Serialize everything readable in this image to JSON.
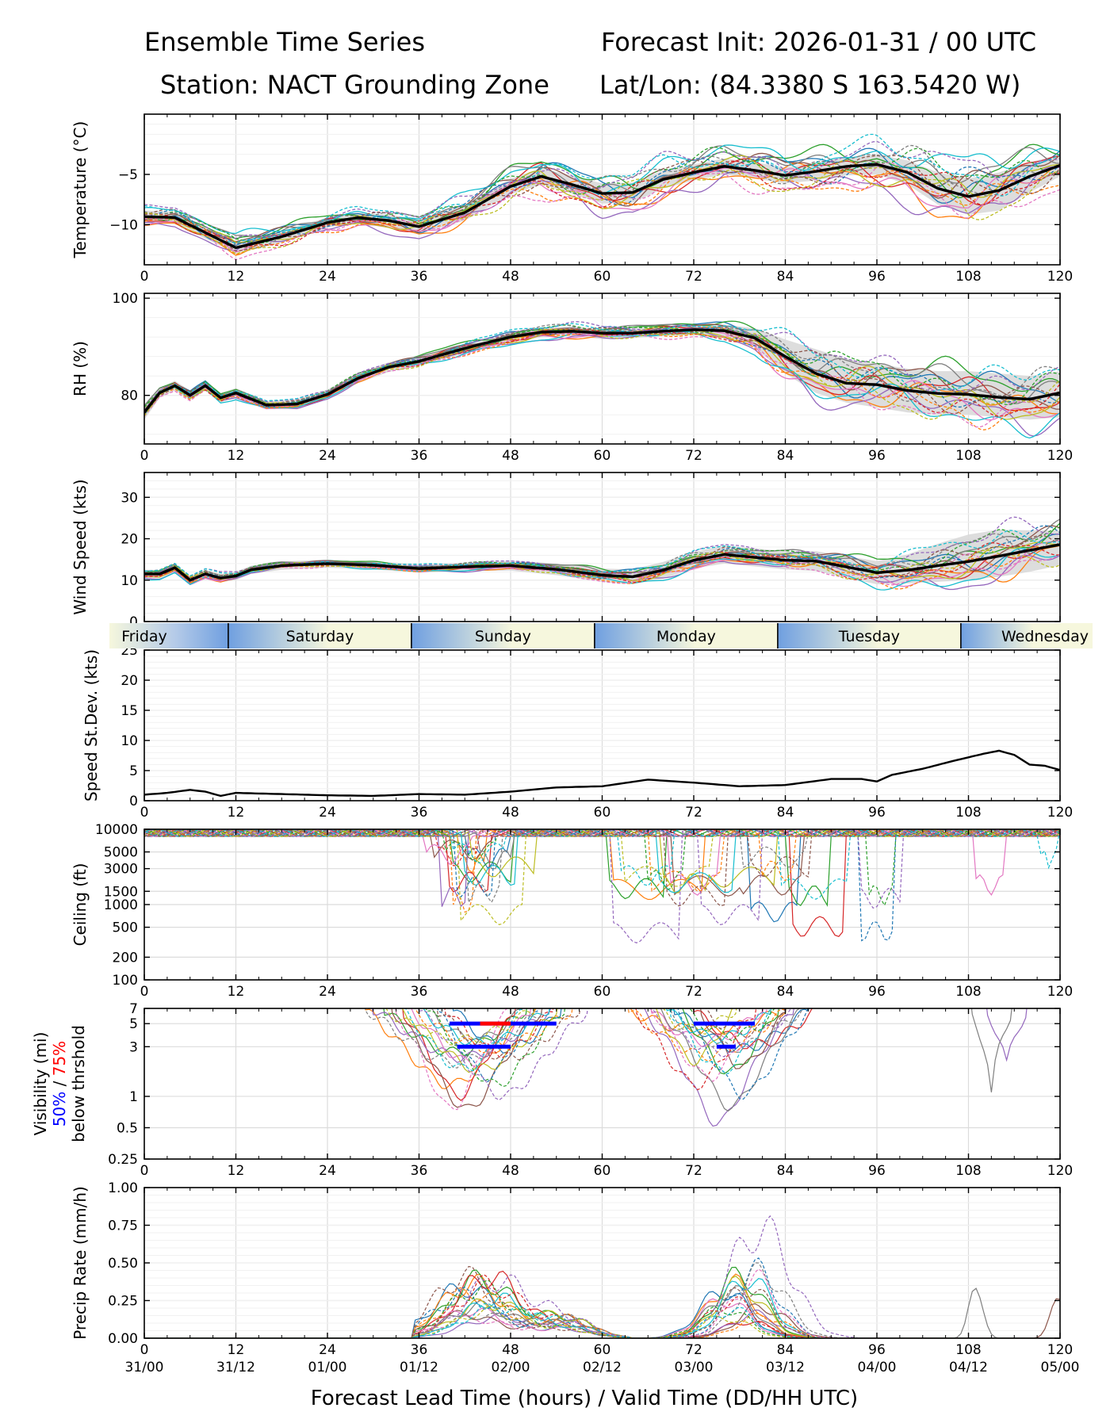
{
  "header": {
    "title": "Ensemble Time Series",
    "station": "Station: NACT Grounding Zone",
    "init": "Forecast Init: 2026-01-31 / 00 UTC",
    "latlon": "Lat/Lon: (84.3380 S 163.5420 W)"
  },
  "chart_data": {
    "type": "line",
    "x_axis": {
      "label": "Forecast Lead Time (hours) / Valid Time (DD/HH UTC)",
      "range": [
        0,
        120
      ],
      "ticks": [
        0,
        12,
        24,
        36,
        48,
        60,
        72,
        84,
        96,
        108,
        120
      ],
      "tick_labels": [
        "0",
        "12",
        "24",
        "36",
        "48",
        "60",
        "72",
        "84",
        "96",
        "108",
        "120"
      ],
      "valid_time_labels": [
        "31/00",
        "31/12",
        "01/00",
        "01/12",
        "02/00",
        "02/12",
        "03/00",
        "03/12",
        "04/00",
        "04/12",
        "05/00"
      ]
    },
    "day_band": {
      "labels": [
        {
          "text": "Friday",
          "hour": 0
        },
        {
          "text": "Saturday",
          "hour": 23
        },
        {
          "text": "Sunday",
          "hour": 47
        },
        {
          "text": "Monday",
          "hour": 71
        },
        {
          "text": "Tuesday",
          "hour": 95
        },
        {
          "text": "Wednesday",
          "hour": 119
        }
      ],
      "dividers": [
        11,
        35,
        59,
        83,
        107
      ]
    },
    "panels": [
      {
        "name": "temperature",
        "ylabel": "Temperature (°C)",
        "scale": "linear",
        "ylim": [
          -14,
          1
        ],
        "yticks": [
          -10,
          -5
        ],
        "ytick_labels": [
          "−10",
          "−5"
        ],
        "mean": {
          "x": [
            0,
            4,
            8,
            12,
            18,
            24,
            28,
            32,
            36,
            42,
            48,
            52,
            56,
            60,
            64,
            68,
            72,
            76,
            80,
            84,
            88,
            92,
            96,
            100,
            104,
            108,
            112,
            116,
            120
          ],
          "y": [
            -9.2,
            -9.3,
            -10.8,
            -12.3,
            -11.2,
            -9.8,
            -9.3,
            -9.6,
            -10.2,
            -8.8,
            -6.2,
            -5.2,
            -6.0,
            -6.9,
            -6.8,
            -5.5,
            -4.8,
            -4.2,
            -4.6,
            -5.1,
            -4.7,
            -4.2,
            -4.0,
            -4.8,
            -6.4,
            -7.2,
            -6.6,
            -5.2,
            -4.1
          ]
        },
        "spread_lower": [
          -9.8,
          -9.9,
          -11.4,
          -12.8,
          -11.8,
          -10.3,
          -9.8,
          -10.2,
          -10.9,
          -9.6,
          -7.0,
          -6.0,
          -6.9,
          -7.9,
          -7.8,
          -6.4,
          -5.6,
          -5.0,
          -5.4,
          -5.9,
          -5.6,
          -5.1,
          -5.0,
          -6.0,
          -8.0,
          -9.0,
          -8.6,
          -6.8,
          -5.2
        ],
        "spread_upper": [
          -8.6,
          -8.7,
          -10.2,
          -11.8,
          -10.6,
          -9.3,
          -8.8,
          -9.0,
          -9.5,
          -8.0,
          -5.4,
          -4.4,
          -5.1,
          -5.9,
          -5.8,
          -4.6,
          -4.0,
          -3.4,
          -3.8,
          -4.3,
          -3.8,
          -3.3,
          -3.0,
          -3.6,
          -4.8,
          -5.4,
          -4.8,
          -3.8,
          -3.0
        ],
        "member_noise": 1.0,
        "spread_mult": [
          0.7,
          0.7,
          0.8,
          0.9,
          0.8,
          0.7,
          0.7,
          0.8,
          0.9,
          1.1,
          1.3,
          1.4,
          1.5,
          1.6,
          1.6,
          1.5,
          1.4,
          1.4,
          1.5,
          1.6,
          1.6,
          1.7,
          1.8,
          2.0,
          2.3,
          2.5,
          2.3,
          2.0,
          1.6
        ]
      },
      {
        "name": "rh",
        "ylabel": "RH (%)",
        "scale": "linear",
        "ylim": [
          70,
          101
        ],
        "yticks": [
          80,
          100
        ],
        "ytick_labels": [
          "80",
          "100"
        ],
        "mean": {
          "x": [
            0,
            2,
            4,
            6,
            8,
            10,
            12,
            16,
            20,
            24,
            28,
            32,
            36,
            40,
            44,
            48,
            52,
            56,
            60,
            64,
            68,
            72,
            76,
            80,
            84,
            88,
            92,
            96,
            100,
            104,
            108,
            112,
            116,
            120
          ],
          "y": [
            76.5,
            80.5,
            82.0,
            80.0,
            82.0,
            79.5,
            80.5,
            78.0,
            78.2,
            80.2,
            83.5,
            85.8,
            87.0,
            88.8,
            90.5,
            92.0,
            93.0,
            93.2,
            92.8,
            92.8,
            93.2,
            93.5,
            93.3,
            91.8,
            88.0,
            84.5,
            82.5,
            82.2,
            81.0,
            80.4,
            80.2,
            79.6,
            79.2,
            80.5
          ]
        },
        "spread_lower": [
          75.0,
          79.5,
          81.0,
          79.0,
          81.0,
          78.5,
          79.5,
          77.2,
          77.2,
          79.2,
          82.5,
          84.8,
          86.0,
          87.8,
          89.5,
          91.0,
          92.0,
          92.2,
          91.6,
          91.8,
          92.2,
          92.4,
          92.0,
          89.8,
          84.5,
          80.5,
          78.5,
          77.5,
          76.5,
          76.0,
          76.0,
          75.5,
          75.0,
          75.5
        ],
        "spread_upper": [
          78.0,
          81.5,
          83.0,
          81.0,
          83.0,
          80.5,
          81.5,
          78.8,
          79.2,
          81.2,
          84.5,
          86.8,
          88.0,
          89.8,
          91.5,
          93.0,
          94.0,
          94.2,
          93.8,
          93.8,
          94.2,
          94.6,
          94.6,
          93.8,
          91.5,
          89.5,
          87.5,
          86.5,
          85.5,
          85.0,
          85.0,
          84.5,
          84.0,
          85.0
        ],
        "member_noise": 1.2,
        "spread_mult": [
          0.7,
          0.6,
          0.6,
          0.6,
          0.6,
          0.6,
          0.6,
          0.5,
          0.6,
          0.6,
          0.6,
          0.6,
          0.7,
          0.8,
          0.9,
          0.9,
          0.9,
          0.9,
          0.9,
          0.9,
          0.9,
          1.0,
          1.2,
          1.8,
          2.6,
          3.2,
          3.5,
          3.6,
          3.6,
          3.6,
          3.6,
          3.6,
          3.6,
          3.6
        ]
      },
      {
        "name": "wind_speed",
        "ylabel": "Wind Speed (kts)",
        "scale": "linear",
        "ylim": [
          0,
          36
        ],
        "yticks": [
          0,
          10,
          20,
          30
        ],
        "ytick_labels": [
          "0",
          "10",
          "20",
          "30"
        ],
        "mean": {
          "x": [
            0,
            2,
            4,
            6,
            8,
            10,
            12,
            14,
            18,
            24,
            30,
            36,
            42,
            48,
            54,
            60,
            64,
            68,
            72,
            76,
            80,
            84,
            88,
            92,
            96,
            100,
            104,
            108,
            112,
            116,
            120
          ],
          "y": [
            11.5,
            11.5,
            13.0,
            10.0,
            11.5,
            10.5,
            11.0,
            12.5,
            13.5,
            14.0,
            13.6,
            12.8,
            13.2,
            13.5,
            12.6,
            11.2,
            10.8,
            12.4,
            14.8,
            16.2,
            15.5,
            14.8,
            14.6,
            13.2,
            11.8,
            12.4,
            13.5,
            14.5,
            15.8,
            17.2,
            18.6
          ]
        },
        "spread_lower": [
          10.5,
          10.5,
          12.0,
          9.0,
          10.5,
          9.5,
          10.0,
          11.5,
          12.5,
          13.0,
          12.6,
          11.8,
          12.2,
          12.3,
          11.2,
          9.6,
          9.0,
          10.4,
          12.8,
          14.0,
          13.3,
          12.6,
          12.2,
          10.6,
          9.0,
          9.2,
          9.6,
          10.0,
          10.8,
          12.0,
          13.6
        ],
        "spread_upper": [
          12.5,
          12.5,
          14.0,
          11.0,
          12.5,
          11.5,
          12.0,
          13.5,
          14.5,
          15.0,
          14.6,
          13.8,
          14.2,
          14.7,
          14.0,
          12.8,
          12.6,
          14.4,
          16.8,
          18.4,
          17.7,
          17.0,
          17.0,
          15.8,
          14.6,
          16.2,
          18.8,
          21.0,
          22.2,
          22.0,
          22.0
        ],
        "member_noise": 1.0,
        "spread_mult": [
          0.8,
          0.8,
          0.9,
          0.9,
          0.8,
          0.8,
          0.7,
          0.6,
          0.6,
          0.6,
          0.6,
          0.6,
          0.7,
          0.8,
          1.0,
          1.2,
          1.3,
          1.4,
          1.5,
          1.6,
          1.6,
          1.7,
          1.9,
          2.2,
          2.5,
          3.0,
          3.6,
          4.2,
          4.8,
          4.6,
          4.0
        ]
      },
      {
        "name": "speed_stdev",
        "ylabel": "Speed St.Dev. (kts)",
        "scale": "linear",
        "ylim": [
          0,
          25
        ],
        "yticks": [
          0,
          5,
          10,
          15,
          20,
          25
        ],
        "ytick_labels": [
          "0",
          "5",
          "10",
          "15",
          "20",
          "25"
        ],
        "line": {
          "x": [
            0,
            3,
            6,
            8,
            10,
            12,
            15,
            24,
            30,
            36,
            42,
            48,
            54,
            60,
            66,
            72,
            78,
            84,
            90,
            94,
            96,
            98,
            102,
            106,
            110,
            112,
            114,
            116,
            118,
            120
          ],
          "y": [
            1.0,
            1.3,
            1.8,
            1.5,
            0.8,
            1.3,
            1.2,
            0.9,
            0.8,
            1.1,
            1.0,
            1.5,
            2.2,
            2.4,
            3.5,
            3.0,
            2.4,
            2.6,
            3.6,
            3.6,
            3.2,
            4.3,
            5.3,
            6.6,
            7.8,
            8.3,
            7.6,
            6.0,
            5.8,
            5.1
          ]
        }
      },
      {
        "name": "ceiling",
        "ylabel": "Ceiling (ft)",
        "scale": "log",
        "ylim": [
          100,
          10000
        ],
        "yticks": [
          100,
          200,
          500,
          1000,
          1500,
          3000,
          5000,
          10000
        ],
        "ytick_labels": [
          "100",
          "200",
          "500",
          "1000",
          "1500",
          "3000",
          "5000",
          "10000"
        ]
      },
      {
        "name": "visibility",
        "ylabel": "Visibility (mi)",
        "threshold_label_50": "50%",
        "threshold_sep": "/",
        "threshold_label_75": "75%",
        "threshold_label_tail": "below thrshold",
        "scale": "log",
        "ylim": [
          0.25,
          7
        ],
        "yticks": [
          0.25,
          0.5,
          1,
          3,
          5,
          7
        ],
        "ytick_labels": [
          "0.25",
          "0.5",
          "1",
          "3",
          "5",
          "7"
        ],
        "threshold_bars": [
          {
            "start": 40,
            "end": 54,
            "value": 5,
            "pct": "50%",
            "color": "#0000ff"
          },
          {
            "start": 44,
            "end": 48,
            "value": 5,
            "pct": "75%",
            "color": "#ff0000"
          },
          {
            "start": 41,
            "end": 48,
            "value": 3,
            "pct": "50%",
            "color": "#0000ff"
          },
          {
            "start": 72,
            "end": 80,
            "value": 5,
            "pct": "50%",
            "color": "#0000ff"
          },
          {
            "start": 75,
            "end": 77.5,
            "value": 3,
            "pct": "50%",
            "color": "#0000ff"
          }
        ]
      },
      {
        "name": "precip_rate",
        "ylabel": "Precip Rate (mm/h)",
        "scale": "linear",
        "ylim": [
          0,
          1.0
        ],
        "yticks": [
          0.0,
          0.25,
          0.5,
          0.75,
          1.0
        ],
        "ytick_labels": [
          "0.00",
          "0.25",
          "0.50",
          "0.75",
          "1.00"
        ]
      }
    ],
    "member_colors": [
      "#1f77b4",
      "#ff7f0e",
      "#2ca02c",
      "#d62728",
      "#9467bd",
      "#8c564b",
      "#e377c2",
      "#7f7f7f",
      "#bcbd22",
      "#17becf"
    ]
  }
}
